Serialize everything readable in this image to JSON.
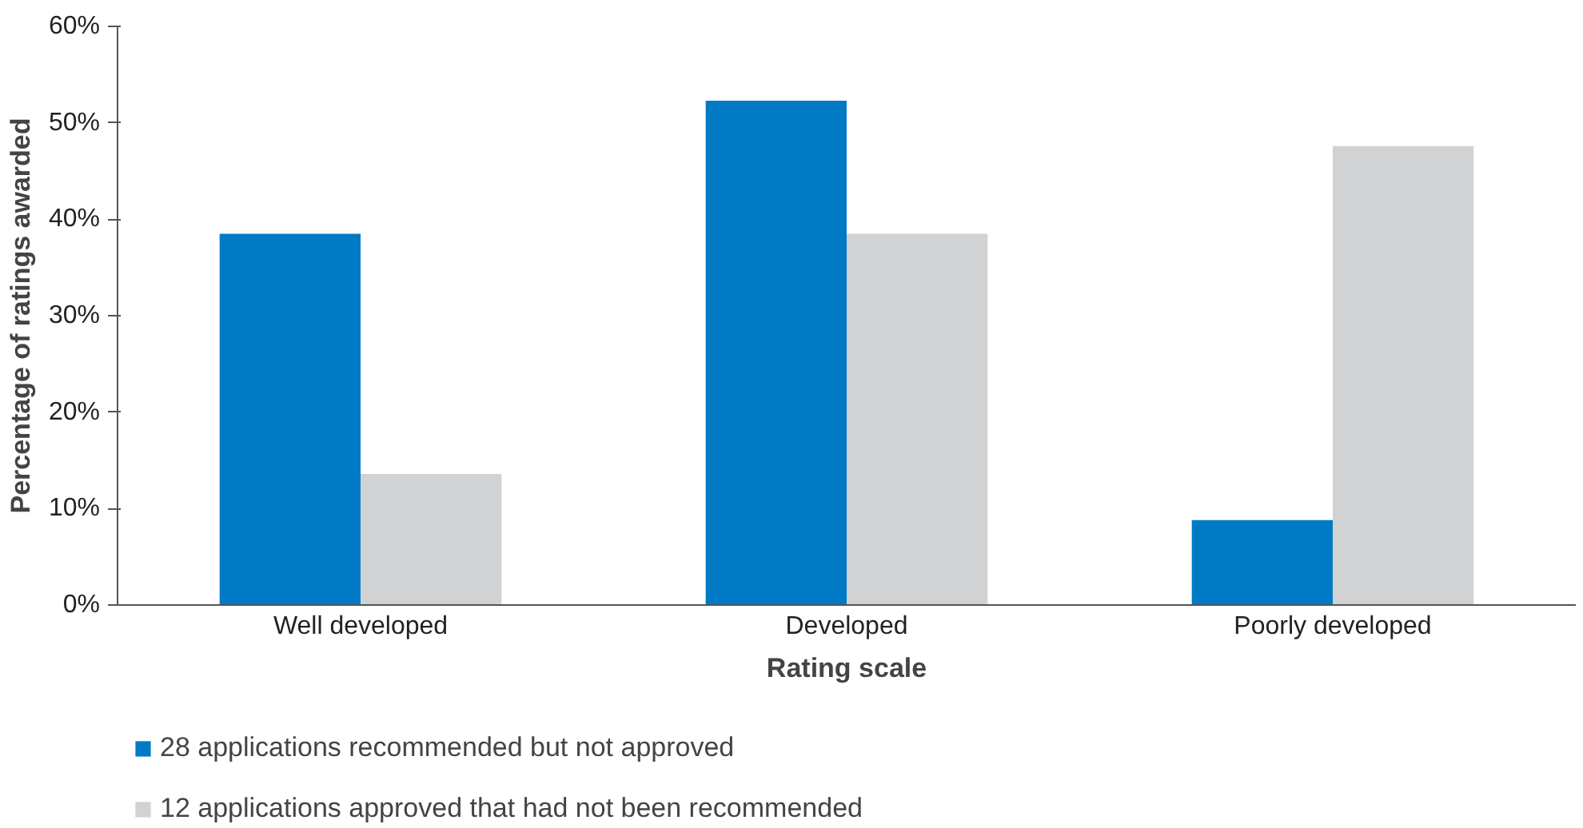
{
  "chart_data": {
    "type": "bar",
    "xlabel": "Rating scale",
    "ylabel": "Percentage of ratings awarded",
    "categories": [
      "Well developed",
      "Developed",
      "Poorly developed"
    ],
    "series": [
      {
        "name": "28 applications recommended but not approved",
        "color": "#007ac4",
        "values": [
          38.5,
          52.3,
          8.8
        ]
      },
      {
        "name": "12 applications approved that had not been recommended",
        "color": "#d1d2d4",
        "values": [
          13.6,
          38.5,
          47.6
        ]
      }
    ],
    "ylim": [
      0,
      60
    ],
    "yticks": [
      {
        "value": 0,
        "label": "0%"
      },
      {
        "value": 10,
        "label": "10%"
      },
      {
        "value": 20,
        "label": "20%"
      },
      {
        "value": 30,
        "label": "30%"
      },
      {
        "value": 40,
        "label": "40%"
      },
      {
        "value": 50,
        "label": "50%"
      },
      {
        "value": 60,
        "label": "60%"
      }
    ],
    "grid": false,
    "legend": "bottom"
  }
}
